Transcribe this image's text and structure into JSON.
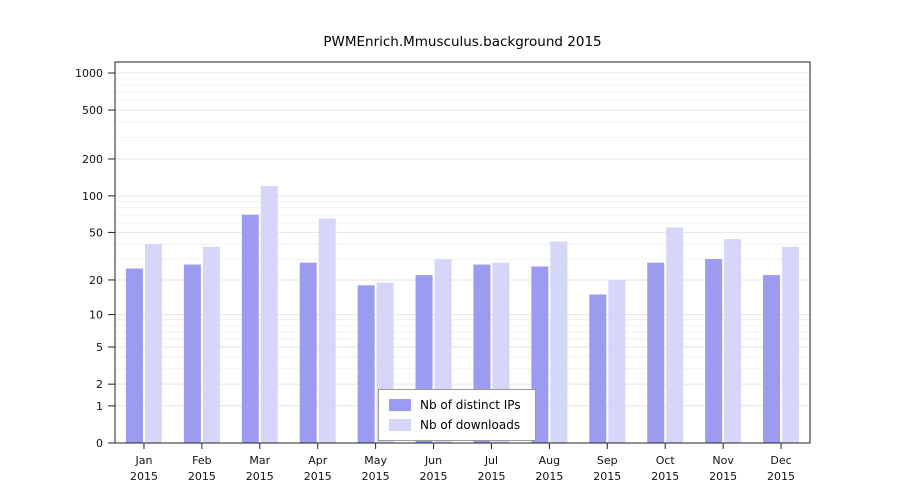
{
  "title": "PWMEnrich.Mmusculus.background 2015",
  "chart_data": {
    "type": "bar",
    "title": "PWMEnrich.Mmusculus.background 2015",
    "categories": [
      "Jan",
      "Feb",
      "Mar",
      "Apr",
      "May",
      "Jun",
      "Jul",
      "Aug",
      "Sep",
      "Oct",
      "Nov",
      "Dec"
    ],
    "year": "2015",
    "series": [
      {
        "name": "Nb of distinct IPs",
        "color": "#9b9bef",
        "values": [
          25,
          27,
          70,
          28,
          18,
          22,
          27,
          26,
          15,
          28,
          30,
          22
        ]
      },
      {
        "name": "Nb of downloads",
        "color": "#d6d6f8",
        "values": [
          40,
          38,
          120,
          65,
          19,
          30,
          28,
          42,
          20,
          55,
          44,
          38
        ]
      }
    ],
    "y_ticks": [
      0,
      1,
      2,
      5,
      10,
      20,
      50,
      100,
      200,
      500,
      1000
    ],
    "ylabel": "",
    "xlabel": "",
    "ylim": [
      0,
      1000
    ],
    "scale": "log10(v+1)",
    "grid": true,
    "legend_position": "bottom-center"
  }
}
